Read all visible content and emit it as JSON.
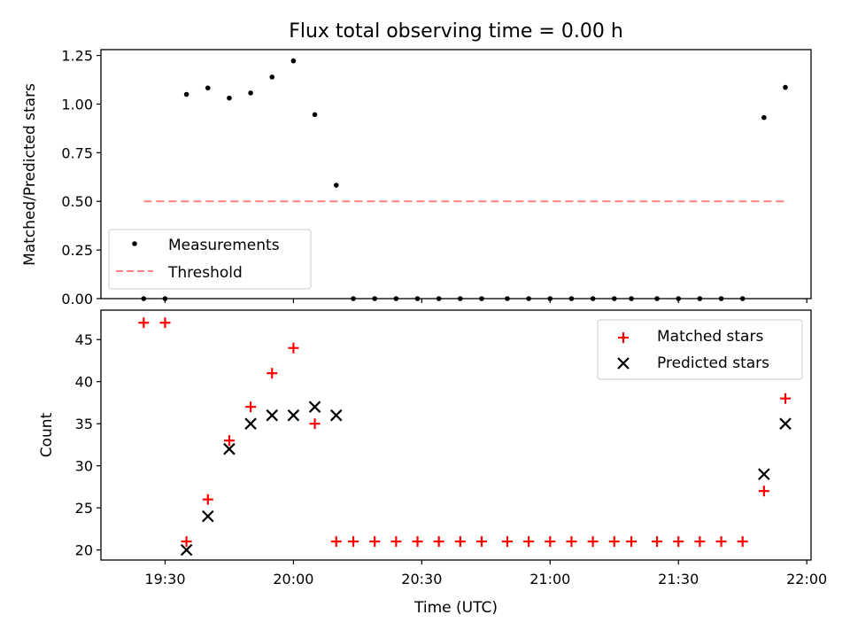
{
  "figure": {
    "title": "Flux total observing time = 0.00 h",
    "xlabel": "Time (UTC)"
  },
  "chart_data": [
    {
      "type": "scatter",
      "ylabel": "Matched/Predicted stars",
      "ylim": [
        0,
        1.28
      ],
      "xlim": [
        "19:15",
        "22:01"
      ],
      "yticks": [
        "0.00",
        "0.25",
        "0.50",
        "0.75",
        "1.00",
        "1.25"
      ],
      "legend_placement": "lower-left",
      "series": [
        {
          "name": "Measurements",
          "marker": "dot",
          "color": "#000000",
          "points": [
            [
              "19:25",
              0.0
            ],
            [
              "19:30",
              0.0
            ],
            [
              "19:35",
              1.05
            ],
            [
              "19:40",
              1.083
            ],
            [
              "19:45",
              1.031
            ],
            [
              "19:50",
              1.057
            ],
            [
              "19:55",
              1.139
            ],
            [
              "20:00",
              1.222
            ],
            [
              "20:05",
              0.946
            ],
            [
              "20:10",
              0.583
            ],
            [
              "20:14",
              0.0
            ],
            [
              "20:19",
              0.0
            ],
            [
              "20:24",
              0.0
            ],
            [
              "20:29",
              0.0
            ],
            [
              "20:34",
              0.0
            ],
            [
              "20:39",
              0.0
            ],
            [
              "20:44",
              0.0
            ],
            [
              "20:50",
              0.0
            ],
            [
              "20:55",
              0.0
            ],
            [
              "21:00",
              0.0
            ],
            [
              "21:05",
              0.0
            ],
            [
              "21:10",
              0.0
            ],
            [
              "21:15",
              0.0
            ],
            [
              "21:19",
              0.0
            ],
            [
              "21:25",
              0.0
            ],
            [
              "21:30",
              0.0
            ],
            [
              "21:35",
              0.0
            ],
            [
              "21:40",
              0.0
            ],
            [
              "21:45",
              0.0
            ],
            [
              "21:50",
              0.931
            ],
            [
              "21:55",
              1.086
            ]
          ]
        },
        {
          "name": "Threshold",
          "style": "dashed-line",
          "color": "#ff8080",
          "points": [
            [
              "19:25",
              0.5
            ],
            [
              "21:55",
              0.5
            ]
          ]
        }
      ]
    },
    {
      "type": "scatter",
      "ylabel": "Count",
      "ylim": [
        18.8,
        48.5
      ],
      "xlim": [
        "19:15",
        "22:01"
      ],
      "yticks": [
        "20",
        "25",
        "30",
        "35",
        "40",
        "45"
      ],
      "xticks": [
        "19:30",
        "20:00",
        "20:30",
        "21:00",
        "21:30",
        "22:00"
      ],
      "legend_placement": "upper-right",
      "series": [
        {
          "name": "Matched stars",
          "marker": "plus",
          "color": "#ff0000",
          "points": [
            [
              "19:25",
              47
            ],
            [
              "19:30",
              47
            ],
            [
              "19:35",
              21
            ],
            [
              "19:40",
              26
            ],
            [
              "19:45",
              33
            ],
            [
              "19:50",
              37
            ],
            [
              "19:55",
              41
            ],
            [
              "20:00",
              44
            ],
            [
              "20:05",
              35
            ],
            [
              "20:10",
              21
            ],
            [
              "20:14",
              21
            ],
            [
              "20:19",
              21
            ],
            [
              "20:24",
              21
            ],
            [
              "20:29",
              21
            ],
            [
              "20:34",
              21
            ],
            [
              "20:39",
              21
            ],
            [
              "20:44",
              21
            ],
            [
              "20:50",
              21
            ],
            [
              "20:55",
              21
            ],
            [
              "21:00",
              21
            ],
            [
              "21:05",
              21
            ],
            [
              "21:10",
              21
            ],
            [
              "21:15",
              21
            ],
            [
              "21:19",
              21
            ],
            [
              "21:25",
              21
            ],
            [
              "21:30",
              21
            ],
            [
              "21:35",
              21
            ],
            [
              "21:40",
              21
            ],
            [
              "21:45",
              21
            ],
            [
              "21:50",
              27
            ],
            [
              "21:55",
              38
            ]
          ]
        },
        {
          "name": "Predicted stars",
          "marker": "x",
          "color": "#000000",
          "points": [
            [
              "19:35",
              20
            ],
            [
              "19:40",
              24
            ],
            [
              "19:45",
              32
            ],
            [
              "19:50",
              35
            ],
            [
              "19:55",
              36
            ],
            [
              "20:00",
              36
            ],
            [
              "20:05",
              37
            ],
            [
              "20:10",
              36
            ],
            [
              "21:50",
              29
            ],
            [
              "21:55",
              35
            ]
          ]
        }
      ]
    }
  ]
}
